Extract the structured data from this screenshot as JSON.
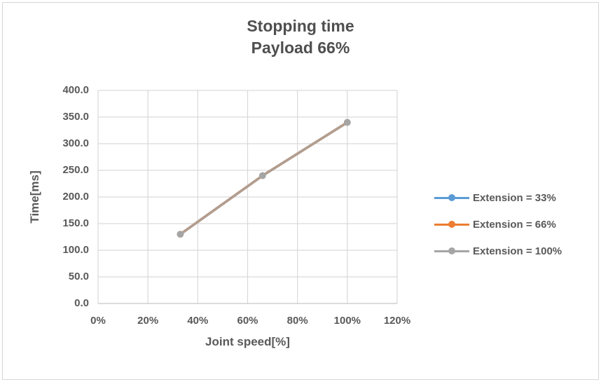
{
  "colors": {
    "text": "#595959",
    "title_text": "#4f4f4f",
    "grid": "#d9d9d9",
    "axis_line": "#c6c6c6",
    "frame_border": "#d6d6d6",
    "background": "#ffffff",
    "marker_gray": "#a5a5a5"
  },
  "chart_data": {
    "type": "line",
    "title": "Stopping time",
    "subtitle": "Payload 66%",
    "xlabel": "Joint speed[%]",
    "ylabel": "Time[ms]",
    "xlim": [
      0,
      120
    ],
    "ylim": [
      0,
      400
    ],
    "x_ticks": [
      "0%",
      "20%",
      "40%",
      "60%",
      "80%",
      "100%",
      "120%"
    ],
    "y_ticks": [
      "400.0",
      "350.0",
      "300.0",
      "250.0",
      "200.0",
      "150.0",
      "100.0",
      "50.0",
      "0.0"
    ],
    "grid": true,
    "legend_position": "right",
    "note": "All three series overlap; gray (Extension = 100%) is drawn on top",
    "series": [
      {
        "name": "Extension = 33%",
        "color": "#5B9BD5",
        "x": [
          33,
          66,
          100
        ],
        "values": [
          130,
          240,
          340
        ]
      },
      {
        "name": "Extension = 66%",
        "color": "#ED7D31",
        "x": [
          33,
          66,
          100
        ],
        "values": [
          130,
          240,
          340
        ]
      },
      {
        "name": "Extension = 100%",
        "color": "#A5A5A5",
        "x": [
          33,
          66,
          100
        ],
        "values": [
          130,
          240,
          340
        ]
      }
    ]
  }
}
